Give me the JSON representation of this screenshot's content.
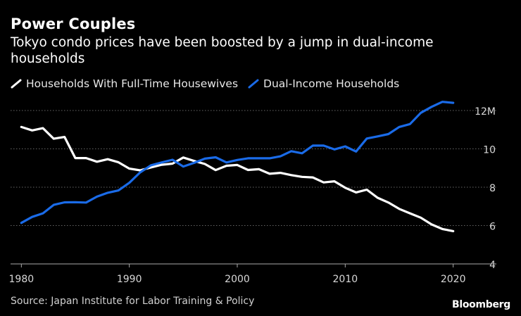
{
  "title": "Power Couples",
  "subtitle": "Tokyo condo prices have been boosted by a jump in dual-income households",
  "source": "Source: Japan Institute for Labor Training & Policy",
  "brand": "Bloomberg",
  "colors": {
    "housewives": "#ffffff",
    "dual": "#1a6be8",
    "grid": "#666666",
    "axis": "#aaaaaa"
  },
  "chart_data": {
    "type": "line",
    "title": "Power Couples",
    "xlabel": "",
    "ylabel": "",
    "xlim": [
      1979,
      2024
    ],
    "ylim": [
      4,
      12
    ],
    "x_ticks": [
      1980,
      1990,
      2000,
      2010,
      2020
    ],
    "y_ticks": [
      4,
      6,
      8,
      10,
      12
    ],
    "y_tick_labels": [
      "4",
      "6",
      "8",
      "10",
      "12M"
    ],
    "x": [
      1980,
      1981,
      1982,
      1983,
      1984,
      1985,
      1986,
      1987,
      1988,
      1989,
      1990,
      1991,
      1992,
      1993,
      1994,
      1995,
      1996,
      1997,
      1998,
      1999,
      2000,
      2001,
      2002,
      2003,
      2004,
      2005,
      2006,
      2007,
      2008,
      2009,
      2010,
      2011,
      2012,
      2013,
      2014,
      2015,
      2016,
      2017,
      2018,
      2019,
      2020
    ],
    "series": [
      {
        "name": "Households With Full-Time Housewives",
        "color": "#ffffff",
        "values": [
          11.14,
          10.96,
          11.08,
          10.53,
          10.62,
          9.52,
          9.52,
          9.33,
          9.46,
          9.3,
          8.97,
          8.88,
          9.03,
          9.17,
          9.23,
          9.55,
          9.37,
          9.21,
          8.89,
          9.12,
          9.16,
          8.9,
          8.94,
          8.7,
          8.75,
          8.63,
          8.54,
          8.51,
          8.25,
          8.31,
          7.97,
          7.73,
          7.87,
          7.45,
          7.2,
          6.87,
          6.64,
          6.41,
          6.06,
          5.82,
          5.71
        ]
      },
      {
        "name": "Dual-Income Households",
        "color": "#1a6be8",
        "values": [
          6.14,
          6.45,
          6.64,
          7.08,
          7.21,
          7.22,
          7.2,
          7.51,
          7.71,
          7.83,
          8.23,
          8.77,
          9.14,
          9.29,
          9.43,
          9.08,
          9.27,
          9.49,
          9.56,
          9.29,
          9.42,
          9.51,
          9.51,
          9.51,
          9.61,
          9.88,
          9.77,
          10.17,
          10.17,
          9.97,
          10.13,
          9.86,
          10.54,
          10.65,
          10.77,
          11.14,
          11.29,
          11.88,
          12.19,
          12.45,
          12.4
        ]
      }
    ]
  }
}
